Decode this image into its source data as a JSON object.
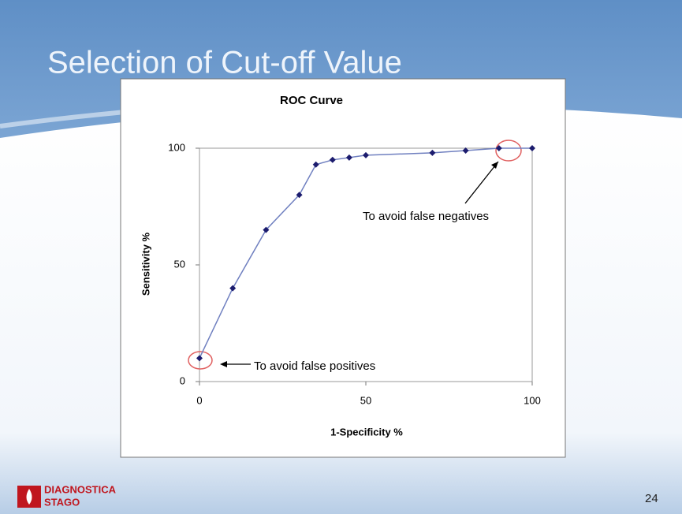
{
  "slide": {
    "title": "Selection of Cut-off Value",
    "logo": [
      "DIAGNOSTICA",
      "STAGO"
    ],
    "page_number": "24"
  },
  "chart_data": {
    "type": "scatter",
    "title": "ROC Curve",
    "x_label": "1-Specificity %",
    "y_label": "Sensitivity %",
    "x": [
      0,
      10,
      20,
      30,
      35,
      40,
      45,
      50,
      70,
      80,
      90,
      100
    ],
    "values": [
      10,
      40,
      65,
      80,
      93,
      95,
      96,
      97,
      98,
      99,
      100,
      100
    ],
    "color": "#1c1c6e",
    "line_color": "#7080c0",
    "xlim": [
      0,
      100
    ],
    "xticks": [
      0,
      50,
      100
    ],
    "ylim": [
      0,
      100
    ],
    "yticks": [
      0,
      50,
      100
    ],
    "grid": false,
    "annotations": [
      "To avoid false negatives",
      "To avoid false positives"
    ]
  }
}
